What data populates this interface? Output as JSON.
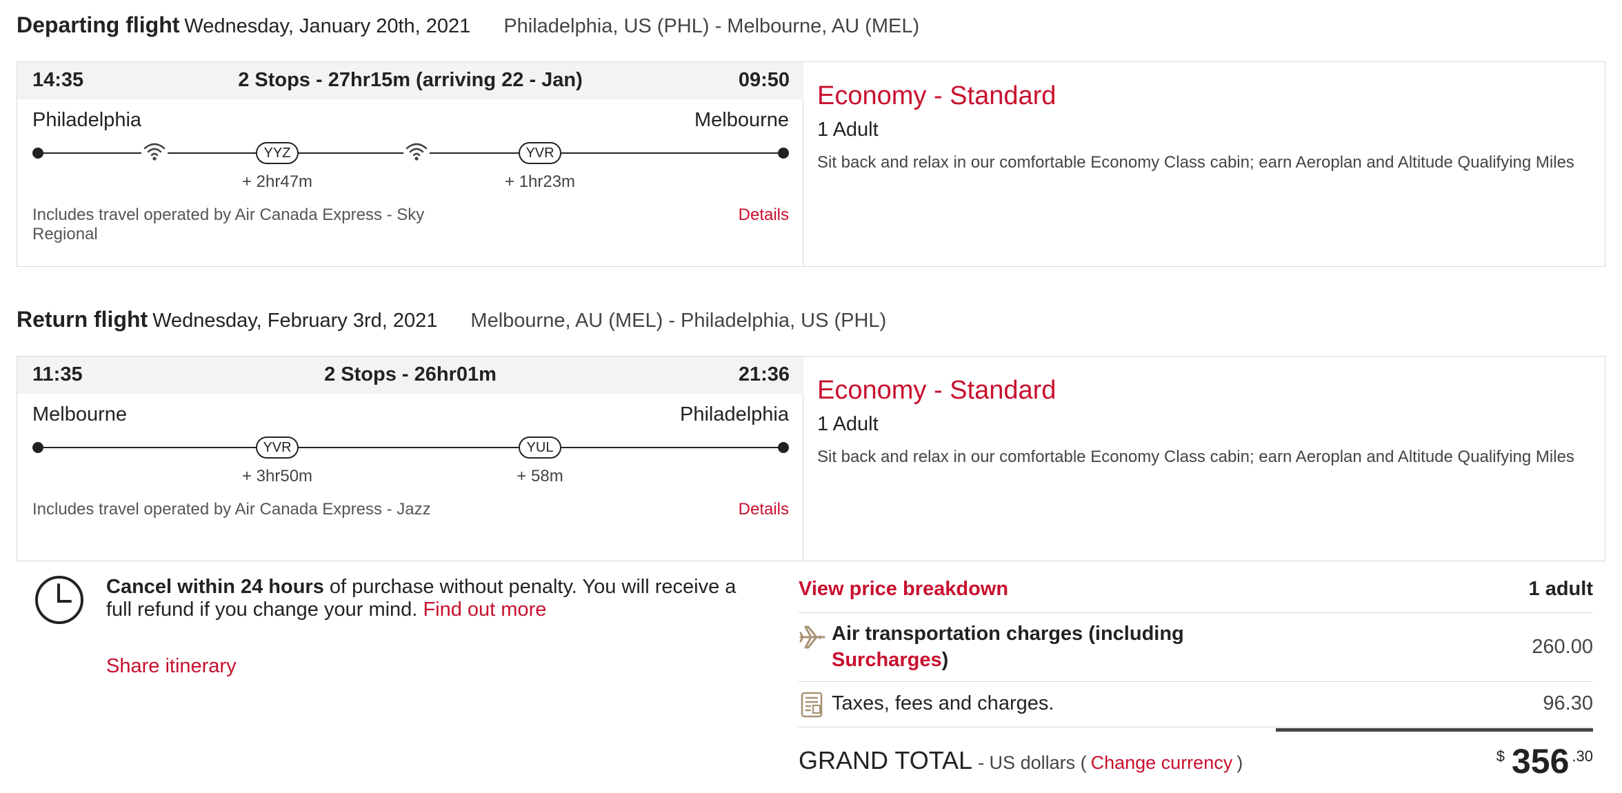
{
  "departing": {
    "title": "Departing flight",
    "date": "Wednesday, January 20th, 2021",
    "route": "Philadelphia, US (PHL) - Melbourne, AU (MEL)",
    "dep_time": "14:35",
    "stops_summary": "2 Stops - 27hr15m (arriving 22 - Jan)",
    "arr_time": "09:50",
    "origin": "Philadelphia",
    "destination": "Melbourne",
    "stops": [
      {
        "code": "YYZ",
        "layover": "+ 2hr47m"
      },
      {
        "code": "YVR",
        "layover": "+ 1hr23m"
      }
    ],
    "wifi_icons": [
      "wifi-icon",
      "wifi-icon"
    ],
    "operated_by": "Includes travel operated by Air Canada Express - Sky Regional",
    "details_link": "Details",
    "cabin": "Economy - Standard",
    "passengers": "1 Adult",
    "cabin_description": "Sit back and relax in our comfortable Economy Class cabin; earn Aeroplan and Altitude Qualifying Miles"
  },
  "return": {
    "title": "Return flight",
    "date": "Wednesday, February 3rd, 2021",
    "route": "Melbourne, AU (MEL) - Philadelphia, US (PHL)",
    "dep_time": "11:35",
    "stops_summary": "2 Stops - 26hr01m",
    "arr_time": "21:36",
    "origin": "Melbourne",
    "destination": "Philadelphia",
    "stops": [
      {
        "code": "YVR",
        "layover": "+ 3hr50m"
      },
      {
        "code": "YUL",
        "layover": "+ 58m"
      }
    ],
    "operated_by": "Includes travel operated by Air Canada Express - Jazz",
    "details_link": "Details",
    "cabin": "Economy - Standard",
    "passengers": "1 Adult",
    "cabin_description": "Sit back and relax in our comfortable Economy Class cabin; earn Aeroplan and Altitude Qualifying Miles"
  },
  "cancel_policy": {
    "bold": "Cancel within 24 hours",
    "text": " of purchase without penalty. You will receive a full refund if you change your mind. ",
    "link": "Find out more",
    "share": "Share itinerary",
    "icon": "clock-icon"
  },
  "price": {
    "view_breakdown": "View price breakdown",
    "passenger_count": "1 adult",
    "air_label_bold": "Air transportation charges (including ",
    "air_label_link": "Surcharges",
    "air_label_close": ")",
    "air_value": "260.00",
    "air_icon": "plane-icon",
    "tax_label": "Taxes, fees and charges.",
    "tax_value": "96.30",
    "tax_icon": "receipt-icon",
    "grand_total_label": "GRAND TOTAL",
    "currency_text": "- US dollars (",
    "change_currency": "Change currency",
    "currency_close": ")",
    "currency_symbol": "$",
    "total_int": "356",
    "total_dec": ".30"
  },
  "colors": {
    "accent": "#c8102e",
    "time_bar": "#f3f3f3",
    "border": "#d8d8d8",
    "icon_tan": "#a89274"
  }
}
